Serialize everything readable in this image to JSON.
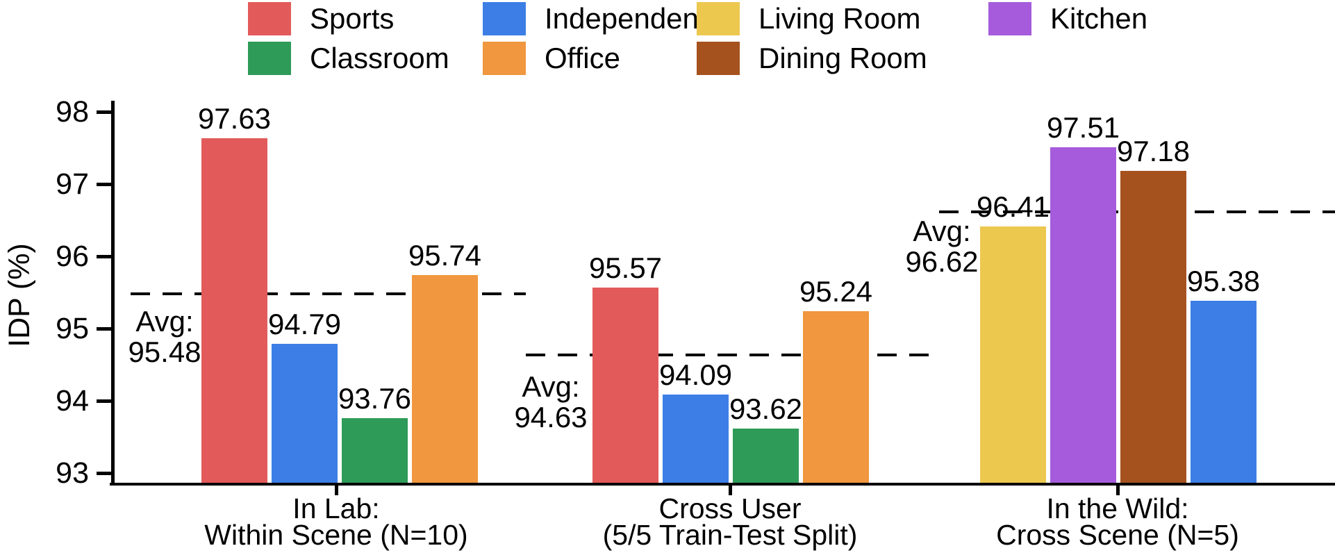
{
  "chart_data": {
    "type": "bar",
    "title": "",
    "xlabel": "",
    "ylabel": "IDP (%)",
    "ylim": [
      92.85,
      98.17
    ],
    "yticks": [
      93,
      94,
      95,
      96,
      97,
      98
    ],
    "grid": false,
    "legend_position": "top",
    "avg_prefix": "Avg:",
    "line_color": "#000000",
    "palette": {
      "Sports": "#E25B5A",
      "Independent": "#3C7EE5",
      "Living Room": "#EDC84F",
      "Kitchen": "#A55BDB",
      "Classroom": "#2E9B58",
      "Office": "#F0973F",
      "Dining Room": "#A5521E"
    },
    "legend_rows": [
      [
        "Sports",
        "Independent",
        "Living Room",
        "Kitchen"
      ],
      [
        "Classroom",
        "Office",
        "Dining Room"
      ]
    ],
    "groups": [
      {
        "label_lines": [
          "In Lab:",
          "Within Scene (N=10)"
        ],
        "avg": 95.48,
        "bars": [
          {
            "category": "Sports",
            "value": 97.63
          },
          {
            "category": "Independent",
            "value": 94.79
          },
          {
            "category": "Classroom",
            "value": 93.76
          },
          {
            "category": "Office",
            "value": 95.74
          }
        ]
      },
      {
        "label_lines": [
          "Cross User",
          "(5/5 Train-Test Split)"
        ],
        "avg": 94.63,
        "bars": [
          {
            "category": "Sports",
            "value": 95.57
          },
          {
            "category": "Independent",
            "value": 94.09
          },
          {
            "category": "Classroom",
            "value": 93.62
          },
          {
            "category": "Office",
            "value": 95.24
          }
        ]
      },
      {
        "label_lines": [
          "In the Wild:",
          "Cross Scene (N=5)"
        ],
        "avg": 96.62,
        "bars": [
          {
            "category": "Living Room",
            "value": 96.41
          },
          {
            "category": "Kitchen",
            "value": 97.51
          },
          {
            "category": "Dining Room",
            "value": 97.18
          },
          {
            "category": "Independent",
            "value": 95.38
          }
        ]
      }
    ]
  }
}
